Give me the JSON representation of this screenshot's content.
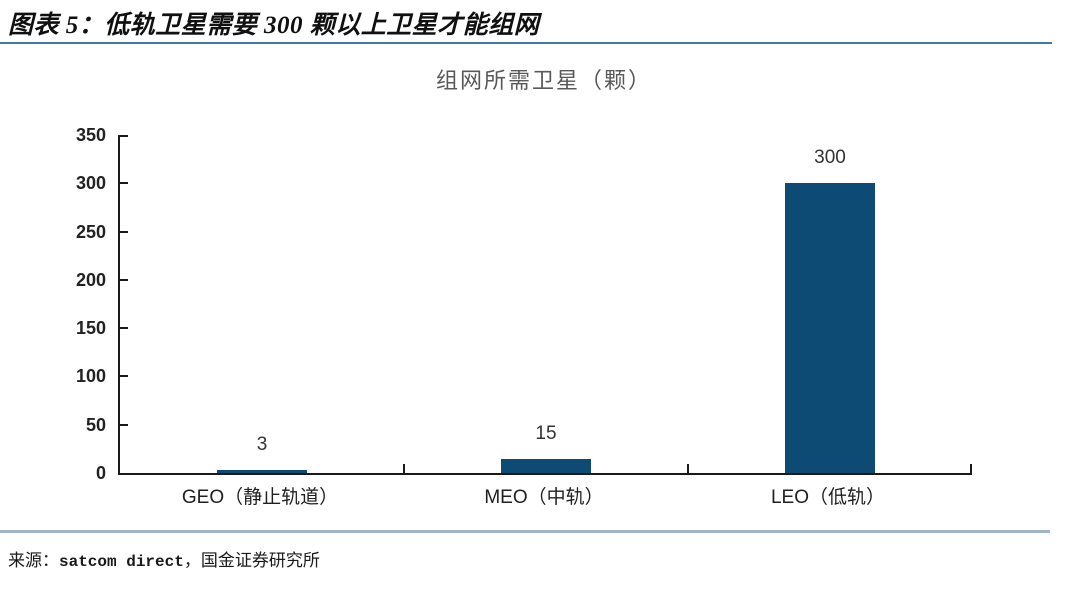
{
  "header": {
    "title": "图表 5：低轨卫星需要 300 颗以上卫星才能组网"
  },
  "chart_data": {
    "type": "bar",
    "title": "组网所需卫星（颗）",
    "categories": [
      "GEO（静止轨道）",
      "MEO（中轨）",
      "LEO（低轨）"
    ],
    "values": [
      3,
      15,
      300
    ],
    "value_labels": [
      "3",
      "15",
      "300"
    ],
    "xlabel": "",
    "ylabel": "",
    "ylim": [
      0,
      350
    ],
    "yticks": [
      0,
      50,
      100,
      150,
      200,
      250,
      300,
      350
    ],
    "grid": false,
    "legend": "none",
    "bar_color": "#0E4B74"
  },
  "footer": {
    "source_label": "来源：",
    "source_en": "satcom direct",
    "source_cn": "，国金证券研究所"
  },
  "colors": {
    "top_rule": "#4377A8",
    "bottom_rule": "#9FB6C9",
    "axis": "#1a1a1a",
    "chart_title_text": "#595959",
    "bar": "#0E4B74"
  }
}
